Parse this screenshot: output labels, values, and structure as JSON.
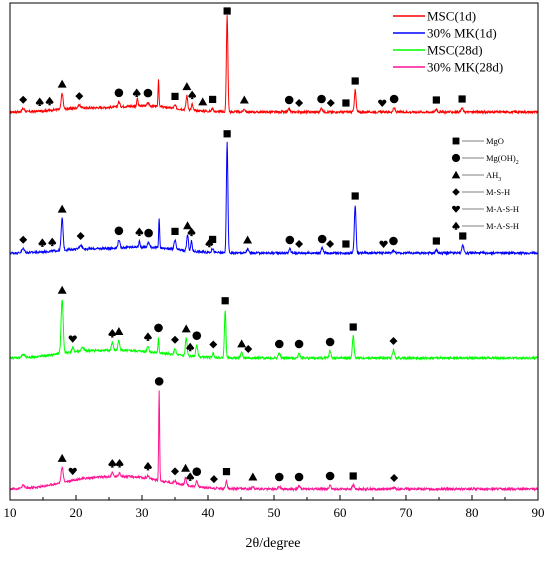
{
  "chart_data": {
    "type": "line",
    "xlabel": "2θ/degree",
    "ylabel": "",
    "xlim": [
      10,
      90
    ],
    "x_ticks": [
      10,
      20,
      30,
      40,
      50,
      60,
      70,
      80,
      90
    ],
    "x_tick_labels": [
      "10",
      "20",
      "30",
      "40",
      "50",
      "60",
      "70",
      "80",
      "90"
    ],
    "y_ticks_shown": false,
    "legend_position": "top-right",
    "series": [
      {
        "name": "MSC(1d)",
        "color": "#ff0000"
      },
      {
        "name": "30% MK(1d)",
        "color": "#0000ff"
      },
      {
        "name": "MSC(28d)",
        "color": "#00ff00"
      },
      {
        "name": "30% MK(28d)",
        "color": "#ff1493"
      }
    ],
    "phase_legend": [
      {
        "marker": "square",
        "label": "MgO"
      },
      {
        "marker": "circle",
        "label": "Mg(OH)",
        "subscript": "2"
      },
      {
        "marker": "triangle",
        "label": "AH",
        "subscript": "3"
      },
      {
        "marker": "diamond",
        "label": "M-S-H"
      },
      {
        "marker": "heart",
        "label": "M-A-S-H"
      },
      {
        "marker": "spade",
        "label": "M-A-S-H"
      }
    ],
    "peak_markers": [
      [
        {
          "x": 42.9,
          "m": "square"
        },
        {
          "x": 62.3,
          "m": "square"
        },
        {
          "x": 17.9,
          "m": "triangle"
        },
        {
          "x": 12.0,
          "m": "diamond"
        },
        {
          "x": 14.5,
          "m": "spade"
        },
        {
          "x": 16.0,
          "m": "spade"
        },
        {
          "x": 20.5,
          "m": "diamond"
        },
        {
          "x": 26.5,
          "m": "circle"
        },
        {
          "x": 29.2,
          "m": "spade"
        },
        {
          "x": 30.9,
          "m": "circle"
        },
        {
          "x": 35.0,
          "m": "square"
        },
        {
          "x": 36.8,
          "m": "triangle"
        },
        {
          "x": 37.6,
          "m": "spade"
        },
        {
          "x": 39.2,
          "m": "triangle"
        },
        {
          "x": 40.7,
          "m": "square"
        },
        {
          "x": 45.5,
          "m": "triangle"
        },
        {
          "x": 52.3,
          "m": "circle"
        },
        {
          "x": 53.8,
          "m": "diamond"
        },
        {
          "x": 57.2,
          "m": "circle"
        },
        {
          "x": 58.6,
          "m": "diamond"
        },
        {
          "x": 60.9,
          "m": "square"
        },
        {
          "x": 66.4,
          "m": "heart"
        },
        {
          "x": 68.2,
          "m": "circle"
        },
        {
          "x": 74.6,
          "m": "square"
        },
        {
          "x": 78.5,
          "m": "square"
        }
      ],
      [
        {
          "x": 42.9,
          "m": "square"
        },
        {
          "x": 62.3,
          "m": "square"
        },
        {
          "x": 17.9,
          "m": "triangle"
        },
        {
          "x": 12.0,
          "m": "diamond"
        },
        {
          "x": 14.9,
          "m": "spade"
        },
        {
          "x": 16.4,
          "m": "spade"
        },
        {
          "x": 20.7,
          "m": "diamond"
        },
        {
          "x": 26.5,
          "m": "circle"
        },
        {
          "x": 29.6,
          "m": "spade"
        },
        {
          "x": 31.0,
          "m": "circle"
        },
        {
          "x": 35.0,
          "m": "square"
        },
        {
          "x": 36.9,
          "m": "triangle"
        },
        {
          "x": 37.5,
          "m": "spade"
        },
        {
          "x": 40.2,
          "m": "spade"
        },
        {
          "x": 40.7,
          "m": "square"
        },
        {
          "x": 46.0,
          "m": "triangle"
        },
        {
          "x": 52.4,
          "m": "circle"
        },
        {
          "x": 53.8,
          "m": "diamond"
        },
        {
          "x": 57.3,
          "m": "circle"
        },
        {
          "x": 58.5,
          "m": "diamond"
        },
        {
          "x": 60.9,
          "m": "square"
        },
        {
          "x": 66.6,
          "m": "heart"
        },
        {
          "x": 68.1,
          "m": "circle"
        },
        {
          "x": 74.6,
          "m": "square"
        },
        {
          "x": 78.6,
          "m": "square"
        }
      ],
      [
        {
          "x": 17.9,
          "m": "triangle"
        },
        {
          "x": 19.5,
          "m": "heart"
        },
        {
          "x": 25.5,
          "m": "spade"
        },
        {
          "x": 26.5,
          "m": "triangle"
        },
        {
          "x": 30.9,
          "m": "spade"
        },
        {
          "x": 32.5,
          "m": "circle"
        },
        {
          "x": 35.0,
          "m": "diamond"
        },
        {
          "x": 36.7,
          "m": "triangle"
        },
        {
          "x": 37.3,
          "m": "spade"
        },
        {
          "x": 38.3,
          "m": "circle"
        },
        {
          "x": 40.8,
          "m": "diamond"
        },
        {
          "x": 42.6,
          "m": "square"
        },
        {
          "x": 45.1,
          "m": "triangle"
        },
        {
          "x": 46.1,
          "m": "diamond"
        },
        {
          "x": 50.8,
          "m": "circle"
        },
        {
          "x": 53.8,
          "m": "circle"
        },
        {
          "x": 58.5,
          "m": "circle"
        },
        {
          "x": 62.0,
          "m": "square"
        },
        {
          "x": 68.1,
          "m": "diamond"
        }
      ],
      [
        {
          "x": 32.6,
          "m": "circle"
        },
        {
          "x": 17.9,
          "m": "triangle"
        },
        {
          "x": 19.5,
          "m": "heart"
        },
        {
          "x": 25.5,
          "m": "spade"
        },
        {
          "x": 26.6,
          "m": "spade"
        },
        {
          "x": 30.9,
          "m": "spade"
        },
        {
          "x": 35.0,
          "m": "diamond"
        },
        {
          "x": 36.6,
          "m": "triangle"
        },
        {
          "x": 37.3,
          "m": "spade"
        },
        {
          "x": 38.3,
          "m": "circle"
        },
        {
          "x": 40.9,
          "m": "diamond"
        },
        {
          "x": 42.8,
          "m": "square"
        },
        {
          "x": 46.8,
          "m": "triangle"
        },
        {
          "x": 50.8,
          "m": "circle"
        },
        {
          "x": 53.8,
          "m": "circle"
        },
        {
          "x": 58.5,
          "m": "circle"
        },
        {
          "x": 62.0,
          "m": "square"
        },
        {
          "x": 68.2,
          "m": "diamond"
        }
      ]
    ]
  }
}
